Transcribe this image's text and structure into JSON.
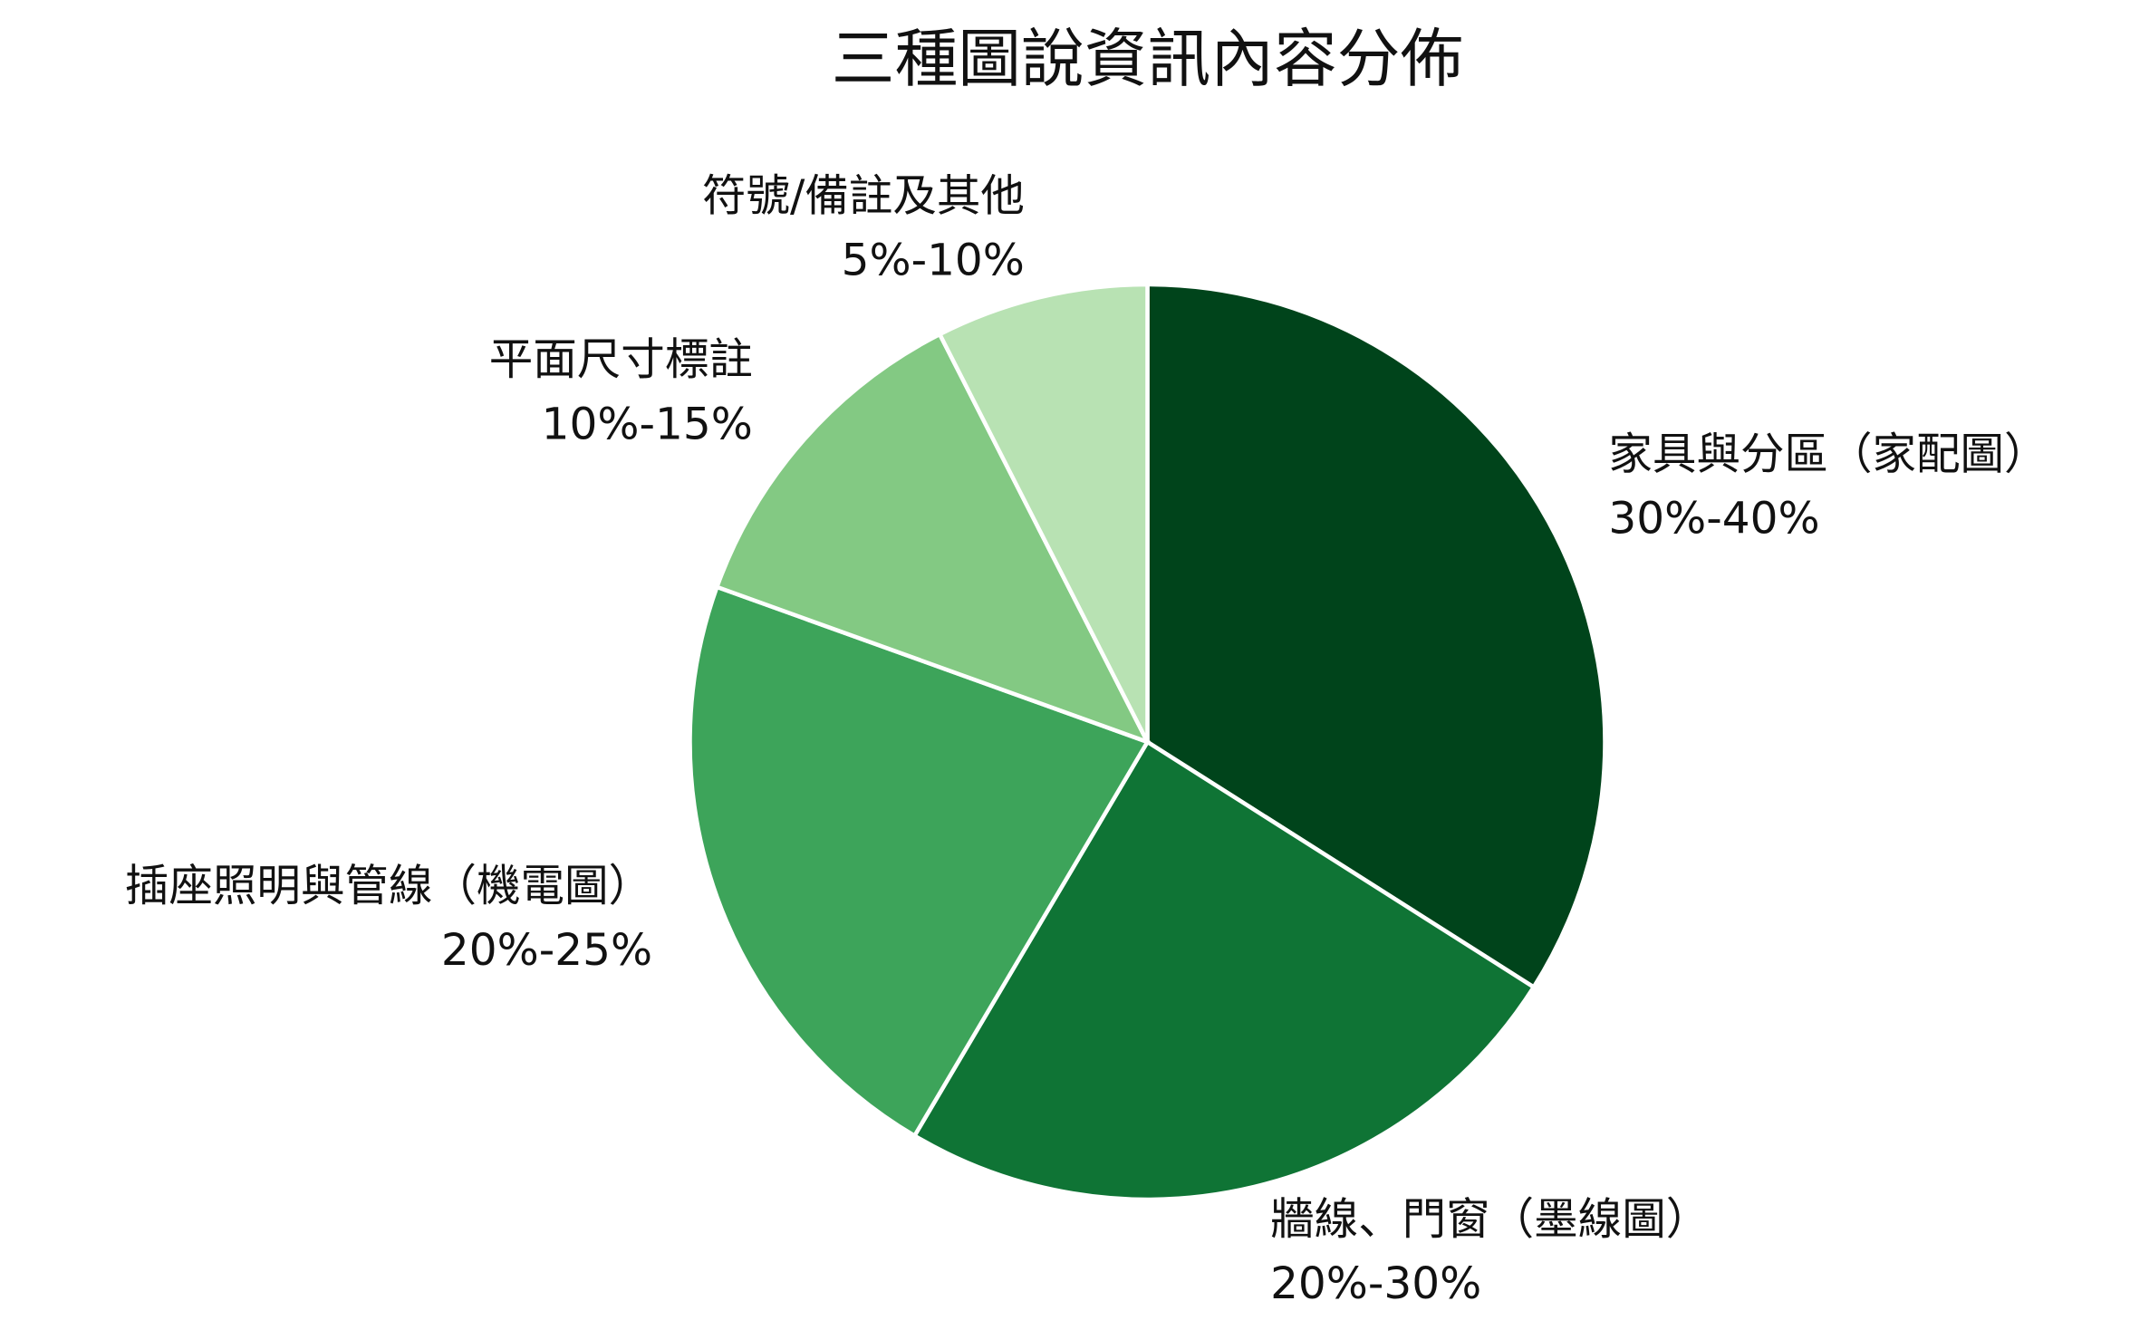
{
  "chart_data": {
    "type": "pie",
    "title": "三種圖說資訊內容分佈",
    "categories": [
      "家具與分區（家配圖）",
      "牆線、門窗（墨線圖）",
      "插座照明與管線（機電圖）",
      "平面尺寸標註",
      "符號/備註及其他"
    ],
    "range_labels": [
      "30%-40%",
      "20%-30%",
      "20%-25%",
      "10%-15%",
      "5%-10%"
    ],
    "values": [
      34,
      24.5,
      22,
      12,
      7.5
    ],
    "colors": [
      "#00441b",
      "#0f7435",
      "#3da45a",
      "#83c983",
      "#b8e2b3"
    ]
  }
}
